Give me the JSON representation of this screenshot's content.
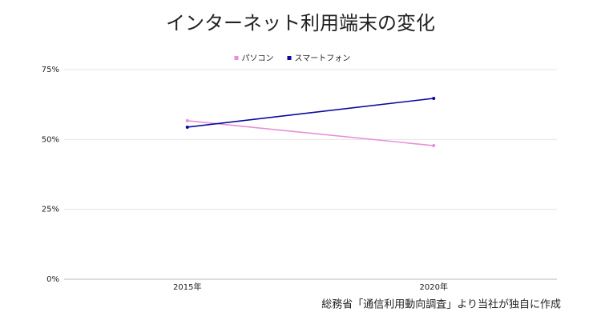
{
  "chart_data": {
    "type": "line",
    "title": "インターネット利用端末の変化",
    "categories": [
      "2015年",
      "2020年"
    ],
    "series": [
      {
        "name": "パソコン",
        "color": "#e88fd8",
        "values": [
          56.7,
          47.8
        ]
      },
      {
        "name": "スマートフォン",
        "color": "#0a0a9e",
        "values": [
          54.4,
          64.7
        ]
      }
    ],
    "ylim": [
      0,
      75
    ],
    "yticks": [
      {
        "value": 0,
        "label": "0%"
      },
      {
        "value": 25,
        "label": "25%"
      },
      {
        "value": 50,
        "label": "50%"
      },
      {
        "value": 75,
        "label": "75%"
      }
    ],
    "grid": true,
    "legend": "top",
    "annotation": "総務省「通信利用動向調査」より当社が独自に作成"
  }
}
